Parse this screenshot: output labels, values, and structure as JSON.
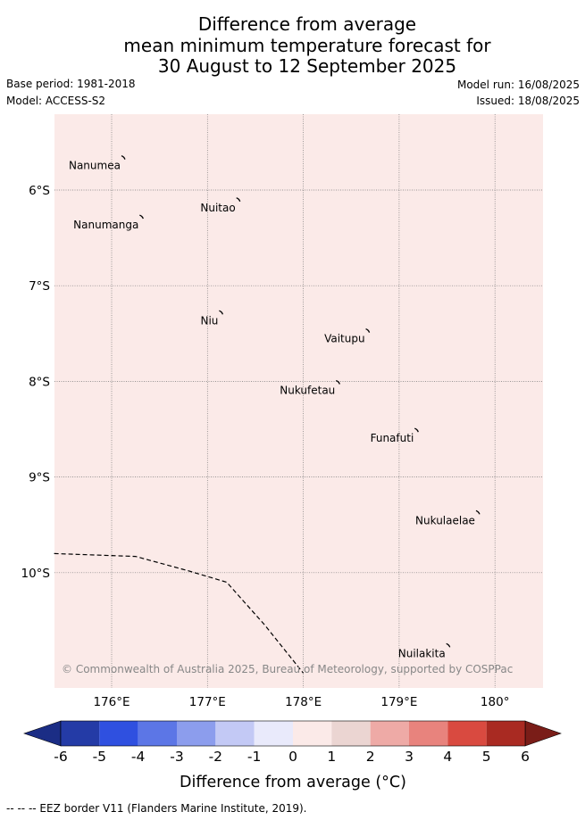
{
  "header": {
    "title_lines": [
      "Difference from average",
      "mean minimum temperature forecast for",
      "30 August to 12 September 2025"
    ],
    "base_period": "Base period: 1981-2018",
    "model": "Model: ACCESS-S2",
    "model_run": "Model run: 16/08/2025",
    "issued": "Issued: 18/08/2025"
  },
  "map": {
    "background_color": "#fbeae8",
    "grid": true,
    "lat_ticks": [
      "6°S",
      "7°S",
      "8°S",
      "9°S",
      "10°S"
    ],
    "lon_ticks": [
      "176°E",
      "177°E",
      "178°E",
      "179°E",
      "180°"
    ],
    "places": [
      {
        "name": "Nanumea",
        "lon": 176.13,
        "lat": -5.67
      },
      {
        "name": "Nuitao",
        "lon": 177.33,
        "lat": -6.11
      },
      {
        "name": "Nanumanga",
        "lon": 176.32,
        "lat": -6.29
      },
      {
        "name": "Niu",
        "lon": 177.15,
        "lat": -7.29
      },
      {
        "name": "Vaitupu",
        "lon": 178.68,
        "lat": -7.48
      },
      {
        "name": "Nukufetau",
        "lon": 178.37,
        "lat": -8.02
      },
      {
        "name": "Funafuti",
        "lon": 179.19,
        "lat": -8.52
      },
      {
        "name": "Nukulaelae",
        "lon": 179.83,
        "lat": -9.38
      },
      {
        "name": "Nuilakita",
        "lon": 179.52,
        "lat": -10.77
      }
    ],
    "eez_border": [
      {
        "lon": 175.4,
        "lat": -9.8
      },
      {
        "lon": 176.25,
        "lat": -9.83
      },
      {
        "lon": 176.8,
        "lat": -9.98
      },
      {
        "lon": 177.2,
        "lat": -10.1
      },
      {
        "lon": 177.6,
        "lat": -10.55
      },
      {
        "lon": 178.0,
        "lat": -11.05
      }
    ],
    "copyright": "© Commonwealth of Australia 2025, Bureau of Meteorology, supported by COSPPac"
  },
  "colorbar": {
    "ticks": [
      "-6",
      "-5",
      "-4",
      "-3",
      "-2",
      "-1",
      "0",
      "1",
      "2",
      "3",
      "4",
      "5",
      "6"
    ],
    "colors": [
      "#243ba6",
      "#2f50e0",
      "#5c76e6",
      "#8c9ded",
      "#c3c9f5",
      "#e9eafb",
      "#fbeae8",
      "#ebd5d2",
      "#eeaaa6",
      "#e8837d",
      "#d94a40",
      "#a92a22"
    ],
    "under_color": "#1b2d85",
    "over_color": "#7a1d18",
    "label": "Difference from average (°C)"
  },
  "footer": {
    "legend": "--  --  -- EEZ border V11 (Flanders Marine Institute, 2019)."
  }
}
